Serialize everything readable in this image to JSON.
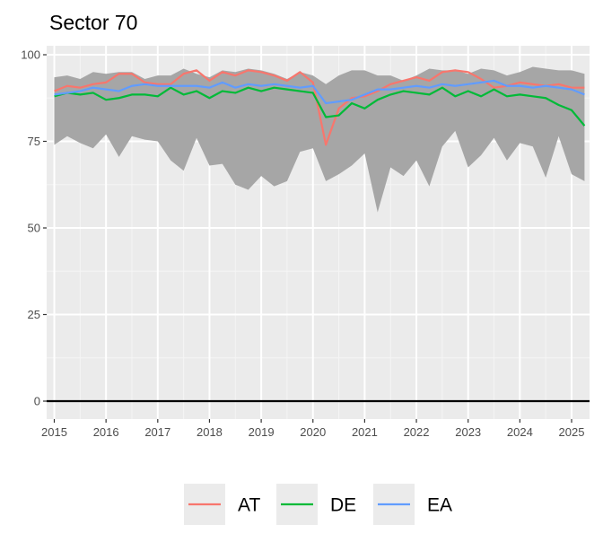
{
  "chart_data": {
    "type": "line",
    "title": "Sector 70",
    "xlabel": "",
    "ylabel": "",
    "xlim": [
      2015.0,
      2025.3
    ],
    "ylim": [
      0,
      100
    ],
    "x_ticks": [
      2015,
      2016,
      2017,
      2018,
      2019,
      2020,
      2021,
      2022,
      2023,
      2024,
      2025
    ],
    "x_tick_labels": [
      "2015",
      "2016",
      "2017",
      "2018",
      "2019",
      "2020",
      "2021",
      "2022",
      "2023",
      "2024",
      "2025"
    ],
    "y_ticks": [
      0,
      25,
      50,
      75,
      100
    ],
    "y_tick_labels": [
      "0",
      "25",
      "50",
      "75",
      "100"
    ],
    "grid": true,
    "legend_position": "bottom",
    "reference_line": 0,
    "x": [
      2015.0,
      2015.25,
      2015.5,
      2015.75,
      2016.0,
      2016.25,
      2016.5,
      2016.75,
      2017.0,
      2017.25,
      2017.5,
      2017.75,
      2018.0,
      2018.25,
      2018.5,
      2018.75,
      2019.0,
      2019.25,
      2019.5,
      2019.75,
      2020.0,
      2020.25,
      2020.5,
      2020.75,
      2021.0,
      2021.25,
      2021.5,
      2021.75,
      2022.0,
      2022.25,
      2022.5,
      2022.75,
      2023.0,
      2023.25,
      2023.5,
      2023.75,
      2024.0,
      2024.25,
      2024.5,
      2024.75,
      2025.0,
      2025.25
    ],
    "band": {
      "color": "#a6a6a6",
      "upper": [
        93.5,
        94.0,
        93.0,
        95.0,
        94.5,
        95.0,
        95.0,
        93.0,
        94.0,
        94.0,
        96.0,
        94.5,
        93.5,
        95.5,
        95.0,
        96.0,
        95.5,
        94.5,
        93.0,
        95.0,
        94.0,
        91.5,
        94.0,
        95.5,
        95.5,
        94.0,
        94.0,
        92.5,
        94.0,
        96.0,
        95.5,
        95.5,
        94.5,
        96.0,
        95.5,
        94.0,
        95.0,
        96.5,
        96.0,
        95.5,
        95.5,
        94.5
      ],
      "lower": [
        74.0,
        76.5,
        74.5,
        73.0,
        77.0,
        70.5,
        76.5,
        75.5,
        75.0,
        69.5,
        66.5,
        76.0,
        68.0,
        68.5,
        62.5,
        61.0,
        65.0,
        62.0,
        63.5,
        72.0,
        73.0,
        63.5,
        65.5,
        68.0,
        71.5,
        54.5,
        67.5,
        65.0,
        69.5,
        62.0,
        73.5,
        78.0,
        67.5,
        71.0,
        76.0,
        69.5,
        74.5,
        73.5,
        64.5,
        76.5,
        65.5,
        63.5
      ]
    },
    "series": [
      {
        "name": "AT",
        "color": "#f8766d",
        "values": [
          89.5,
          91.0,
          90.5,
          91.5,
          92.0,
          94.5,
          94.5,
          92.0,
          91.5,
          91.5,
          94.5,
          95.5,
          92.5,
          95.0,
          94.0,
          95.5,
          95.0,
          94.0,
          92.5,
          95.0,
          92.0,
          74.0,
          84.5,
          87.5,
          88.0,
          89.5,
          91.5,
          92.5,
          93.5,
          92.5,
          95.0,
          95.5,
          95.0,
          93.0,
          90.5,
          91.0,
          92.0,
          91.5,
          91.0,
          91.5,
          90.5,
          90.5
        ]
      },
      {
        "name": "DE",
        "color": "#00ba38",
        "values": [
          88.0,
          89.0,
          88.5,
          89.0,
          87.0,
          87.5,
          88.5,
          88.5,
          88.0,
          90.5,
          88.5,
          89.5,
          87.5,
          89.5,
          89.0,
          90.5,
          89.5,
          90.5,
          90.0,
          89.5,
          89.0,
          82.0,
          82.5,
          86.0,
          84.5,
          87.0,
          88.5,
          89.5,
          89.0,
          88.5,
          90.5,
          88.0,
          89.5,
          88.0,
          90.0,
          88.0,
          88.5,
          88.0,
          87.5,
          85.5,
          84.0,
          79.5
        ]
      },
      {
        "name": "EA",
        "color": "#619cff",
        "values": [
          88.5,
          89.0,
          89.5,
          90.5,
          90.0,
          89.5,
          91.0,
          91.5,
          91.0,
          91.0,
          91.0,
          91.0,
          90.5,
          92.0,
          90.5,
          91.5,
          91.0,
          91.5,
          91.0,
          90.5,
          91.0,
          86.0,
          86.5,
          87.0,
          88.5,
          90.0,
          90.0,
          90.5,
          91.0,
          90.5,
          91.5,
          91.0,
          91.5,
          92.0,
          92.5,
          91.0,
          91.0,
          90.5,
          91.0,
          90.5,
          90.0,
          88.5
        ]
      }
    ]
  }
}
